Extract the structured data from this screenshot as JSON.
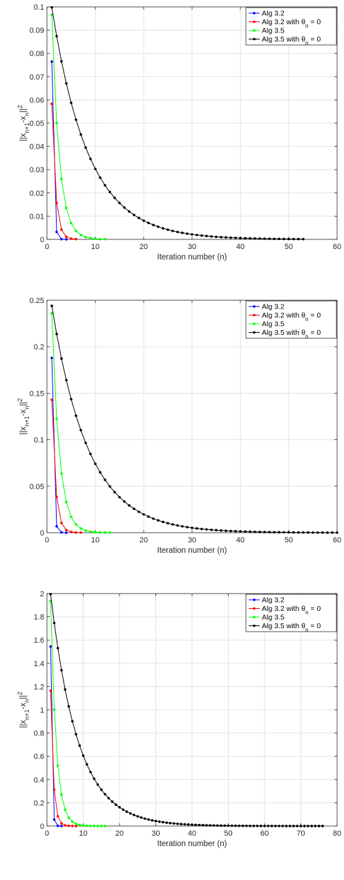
{
  "chart_data": [
    {
      "type": "line",
      "xlabel": "Iteration number (n)",
      "xlim": [
        0,
        60
      ],
      "ylim": [
        0,
        0.1
      ],
      "x_ticks": [
        "0",
        "10",
        "20",
        "30",
        "40",
        "50",
        "60"
      ],
      "y_ticks": [
        "0",
        "0.01",
        "0.02",
        "0.03",
        "0.04",
        "0.05",
        "0.06",
        "0.07",
        "0.08",
        "0.09",
        "0.1"
      ],
      "grid": true,
      "legend_position": "top-right",
      "series": [
        {
          "name": "Alg 3.2",
          "color": "#0000ff",
          "start": 1,
          "values": [
            0.0765,
            0.0032,
            0.0001,
            0.0
          ]
        },
        {
          "name": "Alg 3.2 with θn = 0",
          "color": "#ff0000",
          "start": 1,
          "values": [
            0.0583,
            0.0157,
            0.0042,
            0.0011,
            0.0003,
            0.0001
          ]
        },
        {
          "name": "Alg 3.5",
          "color": "#00ff00",
          "start": 1,
          "values": [
            0.0966,
            0.0501,
            0.026,
            0.0135,
            0.007,
            0.0036,
            0.0019,
            0.001,
            0.0005,
            0.0003,
            0.0001,
            0.0001
          ]
        },
        {
          "name": "Alg 3.5 with θn = 0",
          "color": "#000000",
          "start": 1,
          "decay": 0.876,
          "initial": 0.0998,
          "count": 53
        }
      ]
    },
    {
      "type": "line",
      "xlabel": "Iteration number (n)",
      "xlim": [
        0,
        60
      ],
      "ylim": [
        0,
        0.25
      ],
      "x_ticks": [
        "0",
        "10",
        "20",
        "30",
        "40",
        "50",
        "60"
      ],
      "y_ticks": [
        "0",
        "0.05",
        "0.1",
        "0.15",
        "0.2",
        "0.25"
      ],
      "grid": true,
      "legend_position": "top-right",
      "series": [
        {
          "name": "Alg 3.2",
          "color": "#0000ff",
          "start": 1,
          "values": [
            0.188,
            0.0068,
            0.0003,
            0.0
          ]
        },
        {
          "name": "Alg 3.2 with θn = 0",
          "color": "#ff0000",
          "start": 1,
          "values": [
            0.143,
            0.0385,
            0.0104,
            0.0028,
            0.0008,
            0.0002,
            0.0001
          ]
        },
        {
          "name": "Alg 3.5",
          "color": "#00ff00",
          "start": 1,
          "values": [
            0.236,
            0.1225,
            0.0636,
            0.033,
            0.0171,
            0.0089,
            0.0046,
            0.0024,
            0.0012,
            0.0006,
            0.0003,
            0.0002,
            0.0001
          ]
        },
        {
          "name": "Alg 3.5 with θn = 0",
          "color": "#000000",
          "start": 1,
          "decay": 0.876,
          "initial": 0.244,
          "count": 60
        }
      ]
    },
    {
      "type": "line",
      "xlabel": "Iteration number (n)",
      "xlim": [
        0,
        80
      ],
      "ylim": [
        0,
        2
      ],
      "x_ticks": [
        "0",
        "10",
        "20",
        "30",
        "40",
        "50",
        "60",
        "70",
        "80"
      ],
      "y_ticks": [
        "0",
        "0.2",
        "0.4",
        "0.6",
        "0.8",
        "1",
        "1.2",
        "1.4",
        "1.6",
        "1.8",
        "2"
      ],
      "grid": true,
      "legend_position": "top-right",
      "series": [
        {
          "name": "Alg 3.2",
          "color": "#0000ff",
          "start": 1,
          "values": [
            1.545,
            0.055,
            0.002,
            0.0
          ]
        },
        {
          "name": "Alg 3.2 with θn = 0",
          "color": "#ff0000",
          "start": 1,
          "values": [
            1.165,
            0.313,
            0.084,
            0.023,
            0.006,
            0.002,
            0.0005,
            0.0001
          ]
        },
        {
          "name": "Alg 3.5",
          "color": "#00ff00",
          "start": 1,
          "values": [
            1.935,
            1.003,
            0.52,
            0.27,
            0.14,
            0.072,
            0.038,
            0.019,
            0.01,
            0.005,
            0.003,
            0.0014,
            0.0007,
            0.0004,
            0.0002,
            0.0001
          ]
        },
        {
          "name": "Alg 3.5 with θn = 0",
          "color": "#000000",
          "start": 1,
          "decay": 0.876,
          "initial": 1.995,
          "count": 76
        }
      ]
    }
  ]
}
